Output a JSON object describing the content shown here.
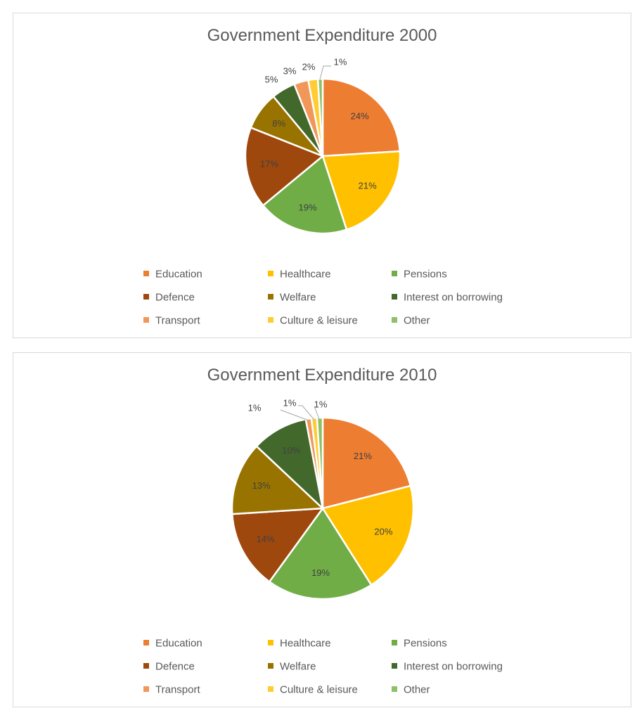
{
  "chart_data": [
    {
      "type": "pie",
      "title": "Government Expenditure 2000",
      "categories": [
        "Education",
        "Healthcare",
        "Pensions",
        "Defence",
        "Welfare",
        "Interest on borrowing",
        "Transport",
        "Culture & leisure",
        "Other"
      ],
      "values": [
        24,
        21,
        19,
        17,
        8,
        5,
        3,
        2,
        1
      ],
      "labels": [
        "24%",
        "21%",
        "19%",
        "17%",
        "8%",
        "5%",
        "3%",
        "2%",
        "1%"
      ],
      "colors": [
        "#ED7D31",
        "#FFC000",
        "#70AD47",
        "#9E480E",
        "#997300",
        "#43682B",
        "#F1975A",
        "#FFCD33",
        "#8CC168"
      ],
      "legend": "bottom"
    },
    {
      "type": "pie",
      "title": "Government Expenditure 2010",
      "categories": [
        "Education",
        "Healthcare",
        "Pensions",
        "Defence",
        "Welfare",
        "Interest on borrowing",
        "Transport",
        "Culture & leisure",
        "Other"
      ],
      "values": [
        21,
        20,
        19,
        14,
        13,
        10,
        1,
        1,
        1
      ],
      "labels": [
        "21%",
        "20%",
        "19%",
        "14%",
        "13%",
        "10%",
        "1%",
        "1%",
        "1%"
      ],
      "colors": [
        "#ED7D31",
        "#FFC000",
        "#70AD47",
        "#9E480E",
        "#997300",
        "#43682B",
        "#F1975A",
        "#FFCD33",
        "#8CC168"
      ],
      "legend": "bottom"
    }
  ]
}
